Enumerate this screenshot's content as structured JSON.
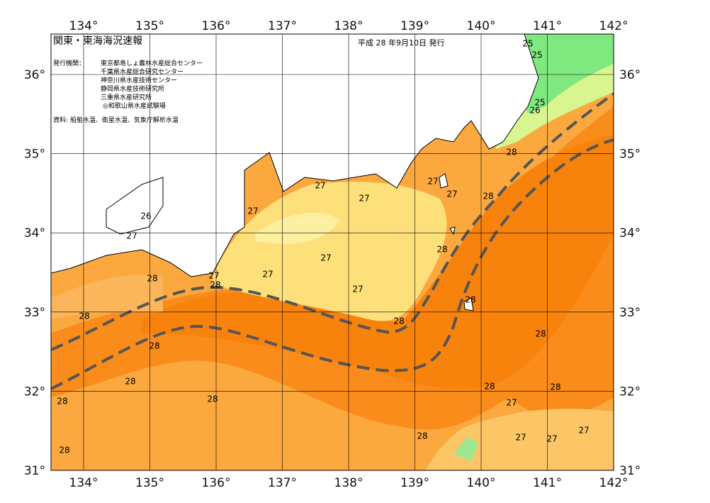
{
  "header": {
    "title": "関東・東海海況速報",
    "issued": "平成 28 年9月10日 発行"
  },
  "issuers": {
    "label": "発行機関：",
    "names": [
      "東京都島しょ農林水産総合センター",
      "千葉県水産総合研究センター",
      "神奈川県水産技術センター",
      "静岡県水産技術研究所",
      "三重県水産研究所",
      "◎和歌山県水産試験場"
    ]
  },
  "source": "資料: 船舶水温、衛星水温、気象庁解析水温",
  "axes": {
    "lon_labels": [
      "134°",
      "135°",
      "136°",
      "137°",
      "138°",
      "139°",
      "140°",
      "141°",
      "142°"
    ],
    "lat_labels": [
      "36°",
      "35°",
      "34°",
      "33°",
      "32°",
      "31°"
    ]
  },
  "contour_labels": [
    25,
    25,
    25,
    26,
    28,
    27,
    27,
    27,
    27,
    28,
    26,
    27,
    27,
    28,
    27,
    27,
    28,
    27,
    28,
    27,
    28,
    28,
    28,
    28,
    28,
    28,
    28,
    28,
    28,
    27,
    28,
    27,
    27,
    27,
    28,
    28
  ]
}
